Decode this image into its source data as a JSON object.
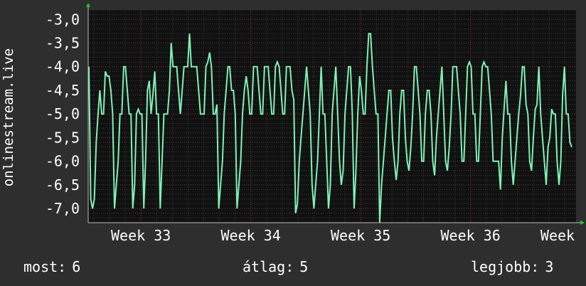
{
  "chart_data": {
    "type": "line",
    "ylabel": "onlinestream.live",
    "ylim": [
      -7.3,
      -2.8
    ],
    "y_ticks": [
      "-3,0",
      "-3,5",
      "-4,0",
      "-4,5",
      "-5,0",
      "-5,5",
      "-6,0",
      "-6,5",
      "-7,0"
    ],
    "y_tick_values": [
      -3.0,
      -3.5,
      -4.0,
      -4.5,
      -5.0,
      -5.5,
      -6.0,
      -6.5,
      -7.0
    ],
    "x_ticks": [
      "Week 33",
      "Week 34",
      "Week 35",
      "Week 36",
      "Week"
    ],
    "x_tick_positions": [
      33,
      34,
      35,
      36,
      37
    ],
    "xlim": [
      32.52,
      36.96
    ],
    "grid": true,
    "colors": {
      "line": "#7ff2b6",
      "background": "#2e2e2e",
      "plot": "#111111",
      "grid": "#7a3030",
      "axis": "#22cc22"
    },
    "series": [
      {
        "values": [
          -4.0,
          -6.8,
          -7.0,
          -6.8,
          -5.6,
          -5.0,
          -4.5,
          -5.0,
          -5.0,
          -4.1,
          -4.2,
          -4.2,
          -4.5,
          -5.0,
          -7.0,
          -6.5,
          -6.0,
          -5.0,
          -5.0,
          -4.0,
          -4.0,
          -4.5,
          -5.0,
          -5.0,
          -7.0,
          -6.5,
          -5.0,
          -4.9,
          -5.0,
          -5.0,
          -7.0,
          -6.0,
          -4.5,
          -4.3,
          -5.0,
          -4.6,
          -4.1,
          -5.0,
          -5.0,
          -7.0,
          -6.0,
          -5.0,
          -5.0,
          -5.0,
          -4.5,
          -3.5,
          -4.0,
          -4.0,
          -4.0,
          -4.5,
          -5.0,
          -4.5,
          -4.0,
          -4.0,
          -4.0,
          -3.3,
          -4.0,
          -4.0,
          -4.0,
          -4.0,
          -4.5,
          -5.0,
          -5.0,
          -5.0,
          -4.0,
          -3.9,
          -3.7,
          -4.0,
          -5.0,
          -5.0,
          -4.8,
          -7.0,
          -6.5,
          -6.0,
          -5.0,
          -4.5,
          -4.0,
          -4.0,
          -4.5,
          -4.5,
          -5.0,
          -7.0,
          -6.5,
          -6.0,
          -5.0,
          -4.5,
          -4.2,
          -4.5,
          -5.0,
          -5.0,
          -4.0,
          -4.0,
          -4.0,
          -4.5,
          -5.0,
          -5.0,
          -4.0,
          -4.0,
          -4.0,
          -4.5,
          -5.0,
          -5.0,
          -4.0,
          -3.9,
          -4.0,
          -4.5,
          -5.0,
          -5.0,
          -4.0,
          -4.0,
          -4.0,
          -4.5,
          -4.7,
          -7.1,
          -6.9,
          -6.0,
          -5.5,
          -5.0,
          -4.5,
          -4.0,
          -4.5,
          -5.0,
          -6.5,
          -7.0,
          -6.5,
          -6.0,
          -5.0,
          -4.0,
          -5.0,
          -5.0,
          -6.0,
          -7.0,
          -6.5,
          -5.0,
          -4.5,
          -4.0,
          -5.0,
          -6.0,
          -6.5,
          -6.2,
          -5.0,
          -4.5,
          -4.0,
          -4.0,
          -5.0,
          -7.0,
          -6.2,
          -5.0,
          -4.2,
          -4.5,
          -5.0,
          -5.0,
          -4.0,
          -3.3,
          -3.3,
          -4.0,
          -4.5,
          -5.0,
          -5.0,
          -7.3,
          -6.5,
          -6.0,
          -5.5,
          -5.0,
          -4.5,
          -4.5,
          -5.5,
          -6.0,
          -6.4,
          -6.0,
          -5.0,
          -4.5,
          -4.5,
          -5.5,
          -6.0,
          -6.2,
          -5.7,
          -5.0,
          -4.0,
          -4.0,
          -4.5,
          -5.0,
          -6.0,
          -6.0,
          -5.0,
          -4.5,
          -4.5,
          -5.0,
          -6.0,
          -6.3,
          -5.5,
          -5.0,
          -4.5,
          -4.0,
          -5.0,
          -6.0,
          -6.2,
          -5.7,
          -5.0,
          -4.0,
          -4.0,
          -4.0,
          -4.5,
          -5.0,
          -6.0,
          -6.0,
          -5.0,
          -4.0,
          -3.9,
          -4.0,
          -5.0,
          -5.0,
          -6.0,
          -6.0,
          -5.0,
          -4.0,
          -3.9,
          -4.0,
          -4.0,
          -4.5,
          -5.0,
          -6.0,
          -6.0,
          -6.0,
          -6.0,
          -6.6,
          -5.5,
          -4.9,
          -4.3,
          -5.0,
          -5.0,
          -6.0,
          -6.5,
          -6.0,
          -5.5,
          -5.0,
          -4.6,
          -4.0,
          -4.0,
          -4.8,
          -5.0,
          -6.0,
          -6.2,
          -5.5,
          -4.9,
          -4.8,
          -4.0,
          -5.0,
          -5.5,
          -6.0,
          -6.5,
          -5.7,
          -5.5,
          -4.9,
          -5.0,
          -5.0,
          -6.0,
          -6.5,
          -6.0,
          -4.6,
          -4.0,
          -5.0,
          -5.0,
          -5.6,
          -5.7
        ]
      }
    ]
  },
  "footer": {
    "now_label": "most:",
    "now_value": "6",
    "avg_label": "átlag:",
    "avg_value": "5",
    "best_label": "legjobb:",
    "best_value": "3"
  }
}
